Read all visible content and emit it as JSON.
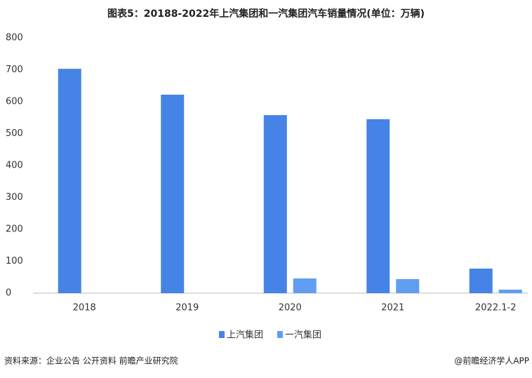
{
  "chart_data": {
    "type": "bar",
    "title": "图表5：20188-2022年上汽集团和一汽集团汽车销量情况(单位：万辆)",
    "categories": [
      "2018",
      "2019",
      "2020",
      "2021",
      "2022.1-2"
    ],
    "series": [
      {
        "name": "上汽集团",
        "color": "#4584e6",
        "values": [
          703,
          622,
          558,
          545,
          77
        ]
      },
      {
        "name": "一汽集团",
        "color": "#5f9ef2",
        "values": [
          null,
          null,
          46,
          44,
          11
        ]
      }
    ],
    "ylim": [
      0,
      800
    ],
    "yticks": [
      0,
      100,
      200,
      300,
      400,
      500,
      600,
      700,
      800
    ],
    "grid": false,
    "legend": "bottom"
  },
  "footer": {
    "source": "资料来源：企业公告 公开资料 前瞻产业研究院",
    "brand": "@前瞻经济学人APP"
  }
}
